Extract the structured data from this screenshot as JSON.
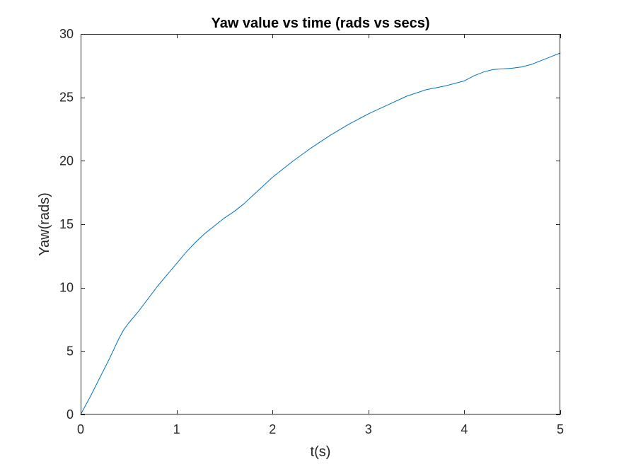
{
  "chart_data": {
    "type": "line",
    "title": "Yaw value vs time (rads vs secs)",
    "xlabel": "t(s)",
    "ylabel": "Yaw(rads)",
    "xlim": [
      0,
      5
    ],
    "ylim": [
      0,
      30
    ],
    "xticks": [
      0,
      1,
      2,
      3,
      4,
      5
    ],
    "yticks": [
      0,
      5,
      10,
      15,
      20,
      25,
      30
    ],
    "xtick_labels": [
      "0",
      "1",
      "2",
      "3",
      "4",
      "5"
    ],
    "ytick_labels": [
      "0",
      "5",
      "10",
      "15",
      "20",
      "25",
      "30"
    ],
    "grid": false,
    "box": true,
    "colors": {
      "line": "#0072BD",
      "axes": "#262626",
      "background": "#ffffff"
    },
    "series": [
      {
        "x": [
          0,
          0.1,
          0.2,
          0.3,
          0.4,
          0.45,
          0.5,
          0.6,
          0.7,
          0.8,
          0.9,
          1.0,
          1.1,
          1.2,
          1.3,
          1.4,
          1.5,
          1.6,
          1.7,
          1.8,
          1.9,
          2.0,
          2.2,
          2.4,
          2.6,
          2.8,
          3.0,
          3.2,
          3.4,
          3.6,
          3.8,
          4.0,
          4.1,
          4.2,
          4.3,
          4.4,
          4.5,
          4.6,
          4.7,
          4.8,
          4.9,
          5.0
        ],
        "y": [
          0,
          1.4,
          2.9,
          4.4,
          6.0,
          6.7,
          7.2,
          8.1,
          9.1,
          10.1,
          11.0,
          11.9,
          12.8,
          13.6,
          14.3,
          14.9,
          15.5,
          16.0,
          16.6,
          17.3,
          18.0,
          18.7,
          19.9,
          21.0,
          22.0,
          22.9,
          23.7,
          24.4,
          25.1,
          25.6,
          25.9,
          26.3,
          26.7,
          27.0,
          27.2,
          27.25,
          27.3,
          27.4,
          27.6,
          27.9,
          28.2,
          28.5
        ]
      }
    ]
  }
}
